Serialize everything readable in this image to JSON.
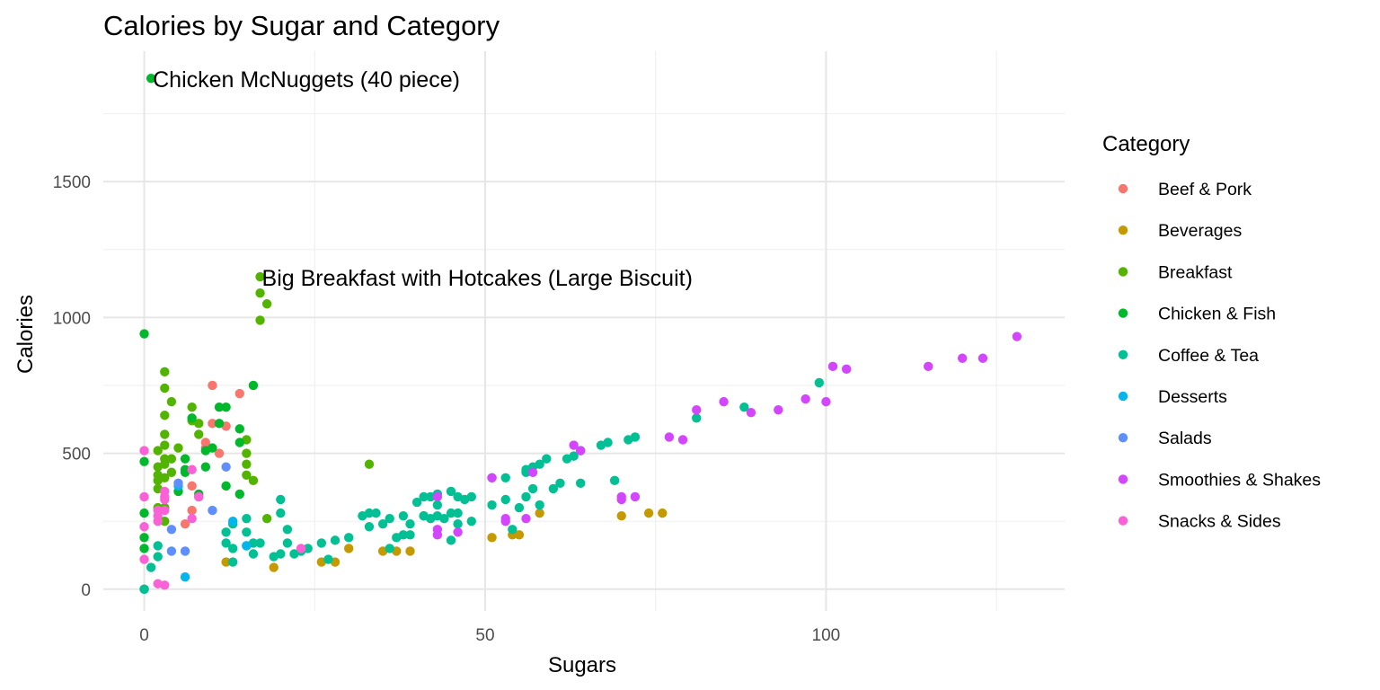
{
  "chart_data": {
    "type": "scatter",
    "title": "Calories by Sugar and Category",
    "xlabel": "Sugars",
    "ylabel": "Calories",
    "xlim": [
      -6,
      135
    ],
    "ylim": [
      -80,
      1980
    ],
    "x_ticks": [
      0,
      50,
      100
    ],
    "y_ticks": [
      0,
      500,
      1000,
      1500
    ],
    "grid": true,
    "legend": {
      "title": "Category",
      "position": "right"
    },
    "series": [
      {
        "name": "Beef & Pork",
        "color": "#F8766D",
        "points": [
          [
            10,
            750
          ],
          [
            14,
            720
          ],
          [
            11,
            500
          ],
          [
            10,
            610
          ],
          [
            12,
            600
          ],
          [
            9,
            540
          ],
          [
            9,
            520
          ],
          [
            7,
            380
          ],
          [
            7,
            290
          ],
          [
            6,
            240
          ],
          [
            8,
            340
          ]
        ]
      },
      {
        "name": "Beverages",
        "color": "#C49A00",
        "points": [
          [
            19,
            80
          ],
          [
            12,
            100
          ],
          [
            26,
            100
          ],
          [
            28,
            100
          ],
          [
            30,
            150
          ],
          [
            35,
            140
          ],
          [
            37,
            140
          ],
          [
            39,
            140
          ],
          [
            51,
            190
          ],
          [
            54,
            200
          ],
          [
            55,
            200
          ],
          [
            58,
            280
          ],
          [
            70,
            270
          ],
          [
            74,
            280
          ],
          [
            76,
            280
          ]
        ]
      },
      {
        "name": "Breakfast",
        "color": "#53B400",
        "points": [
          [
            17,
            1150
          ],
          [
            17,
            1090
          ],
          [
            18,
            1050
          ],
          [
            17,
            990
          ],
          [
            3,
            800
          ],
          [
            3,
            740
          ],
          [
            4,
            690
          ],
          [
            7,
            670
          ],
          [
            7,
            620
          ],
          [
            3,
            640
          ],
          [
            8,
            610
          ],
          [
            2,
            510
          ],
          [
            3,
            570
          ],
          [
            5,
            520
          ],
          [
            8,
            570
          ],
          [
            3,
            530
          ],
          [
            15,
            550
          ],
          [
            15,
            500
          ],
          [
            2,
            450
          ],
          [
            3,
            480
          ],
          [
            4,
            480
          ],
          [
            3,
            460
          ],
          [
            2,
            420
          ],
          [
            3,
            410
          ],
          [
            15,
            460
          ],
          [
            15,
            420
          ],
          [
            16,
            400
          ],
          [
            2,
            400
          ],
          [
            2,
            370
          ],
          [
            3,
            300
          ],
          [
            3,
            250
          ],
          [
            18,
            260
          ],
          [
            2,
            300
          ],
          [
            33,
            460
          ],
          [
            4,
            430
          ]
        ]
      },
      {
        "name": "Chicken & Fish",
        "color": "#00B82B",
        "points": [
          [
            1,
            1880
          ],
          [
            0,
            940
          ],
          [
            16,
            750
          ],
          [
            11,
            670
          ],
          [
            12,
            670
          ],
          [
            7,
            630
          ],
          [
            14,
            590
          ],
          [
            11,
            610
          ],
          [
            14,
            540
          ],
          [
            10,
            520
          ],
          [
            6,
            480
          ],
          [
            6,
            440
          ],
          [
            9,
            510
          ],
          [
            6,
            430
          ],
          [
            5,
            360
          ],
          [
            8,
            350
          ],
          [
            12,
            380
          ],
          [
            14,
            350
          ],
          [
            0,
            470
          ],
          [
            0,
            280
          ],
          [
            0,
            190
          ],
          [
            0,
            150
          ],
          [
            0,
            0
          ],
          [
            9,
            450
          ]
        ]
      },
      {
        "name": "Coffee & Tea",
        "color": "#00C094",
        "points": [
          [
            99,
            760
          ],
          [
            88,
            670
          ],
          [
            81,
            630
          ],
          [
            71,
            550
          ],
          [
            67,
            530
          ],
          [
            68,
            540
          ],
          [
            64,
            510
          ],
          [
            63,
            490
          ],
          [
            62,
            480
          ],
          [
            64,
            390
          ],
          [
            60,
            370
          ],
          [
            61,
            390
          ],
          [
            57,
            370
          ],
          [
            58,
            460
          ],
          [
            59,
            480
          ],
          [
            57,
            450
          ],
          [
            56,
            440
          ],
          [
            56,
            430
          ],
          [
            53,
            410
          ],
          [
            51,
            410
          ],
          [
            48,
            340
          ],
          [
            47,
            330
          ],
          [
            46,
            340
          ],
          [
            45,
            360
          ],
          [
            43,
            350
          ],
          [
            42,
            340
          ],
          [
            41,
            340
          ],
          [
            40,
            320
          ],
          [
            43,
            310
          ],
          [
            41,
            270
          ],
          [
            42,
            260
          ],
          [
            43,
            270
          ],
          [
            44,
            260
          ],
          [
            45,
            280
          ],
          [
            46,
            280
          ],
          [
            46,
            240
          ],
          [
            48,
            250
          ],
          [
            45,
            180
          ],
          [
            41,
            270
          ],
          [
            39,
            240
          ],
          [
            38,
            270
          ],
          [
            36,
            260
          ],
          [
            37,
            190
          ],
          [
            39,
            200
          ],
          [
            38,
            200
          ],
          [
            36,
            150
          ],
          [
            35,
            240
          ],
          [
            33,
            230
          ],
          [
            34,
            280
          ],
          [
            33,
            280
          ],
          [
            32,
            270
          ],
          [
            20,
            330
          ],
          [
            20,
            280
          ],
          [
            21,
            220
          ],
          [
            21,
            170
          ],
          [
            22,
            130
          ],
          [
            20,
            130
          ],
          [
            19,
            120
          ],
          [
            17,
            170
          ],
          [
            16,
            130
          ],
          [
            15,
            160
          ],
          [
            16,
            170
          ],
          [
            15,
            260
          ],
          [
            15,
            210
          ],
          [
            13,
            240
          ],
          [
            12,
            210
          ],
          [
            12,
            170
          ],
          [
            13,
            150
          ],
          [
            13,
            100
          ],
          [
            24,
            150
          ],
          [
            26,
            170
          ],
          [
            28,
            180
          ],
          [
            30,
            190
          ],
          [
            27,
            110
          ],
          [
            23,
            140
          ],
          [
            51,
            310
          ],
          [
            55,
            300
          ],
          [
            56,
            340
          ],
          [
            58,
            310
          ],
          [
            53,
            330
          ],
          [
            54,
            220
          ],
          [
            2,
            160
          ],
          [
            2,
            120
          ],
          [
            1,
            80
          ],
          [
            0,
            0
          ],
          [
            69,
            400
          ],
          [
            72,
            560
          ]
        ]
      },
      {
        "name": "Desserts",
        "color": "#00B6EB",
        "points": [
          [
            13,
            250
          ],
          [
            15,
            160
          ],
          [
            6,
            45
          ],
          [
            5,
            380
          ]
        ]
      },
      {
        "name": "Salads",
        "color": "#5F8FFF",
        "points": [
          [
            12,
            450
          ],
          [
            10,
            290
          ],
          [
            5,
            390
          ],
          [
            4,
            220
          ],
          [
            4,
            140
          ],
          [
            6,
            140
          ]
        ]
      },
      {
        "name": "Smoothies & Shakes",
        "color": "#D445FF",
        "points": [
          [
            128,
            930
          ],
          [
            101,
            820
          ],
          [
            103,
            810
          ],
          [
            115,
            820
          ],
          [
            120,
            850
          ],
          [
            123,
            850
          ],
          [
            97,
            700
          ],
          [
            100,
            690
          ],
          [
            85,
            690
          ],
          [
            81,
            660
          ],
          [
            89,
            650
          ],
          [
            93,
            660
          ],
          [
            77,
            560
          ],
          [
            79,
            550
          ],
          [
            63,
            530
          ],
          [
            64,
            510
          ],
          [
            51,
            410
          ],
          [
            57,
            430
          ],
          [
            43,
            340
          ],
          [
            43,
            220
          ],
          [
            46,
            210
          ],
          [
            43,
            200
          ],
          [
            53,
            260
          ],
          [
            53,
            250
          ],
          [
            56,
            260
          ],
          [
            70,
            340
          ],
          [
            72,
            340
          ],
          [
            70,
            330
          ]
        ]
      },
      {
        "name": "Snacks & Sides",
        "color": "#FB61D7",
        "points": [
          [
            0,
            510
          ],
          [
            0,
            340
          ],
          [
            0,
            230
          ],
          [
            0,
            110
          ],
          [
            2,
            290
          ],
          [
            2,
            270
          ],
          [
            2,
            250
          ],
          [
            2,
            20
          ],
          [
            3,
            360
          ],
          [
            3,
            340
          ],
          [
            3,
            330
          ],
          [
            3,
            290
          ],
          [
            3,
            15
          ],
          [
            7,
            440
          ],
          [
            7,
            260
          ],
          [
            8,
            340
          ],
          [
            23,
            150
          ]
        ]
      }
    ],
    "annotations": [
      {
        "text": "Chicken McNuggets (40 piece)",
        "x": 1,
        "y": 1880
      },
      {
        "text": "Big Breakfast with Hotcakes (Large Biscuit)",
        "x": 17,
        "y": 1150
      }
    ]
  }
}
